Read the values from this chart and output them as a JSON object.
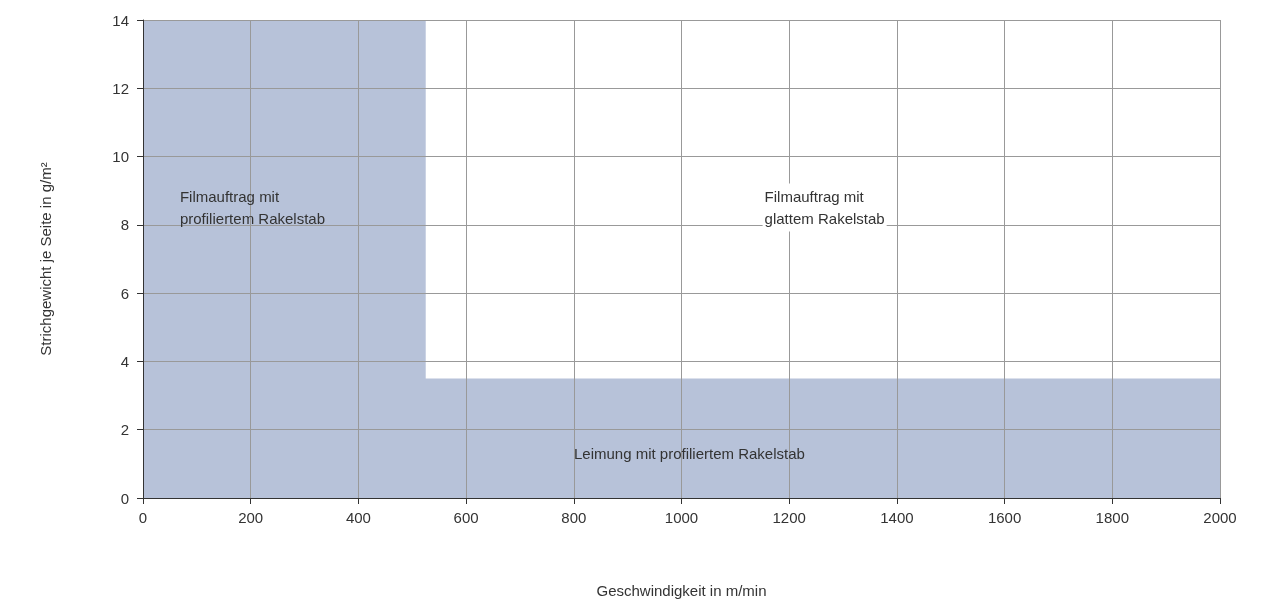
{
  "chart_data": {
    "type": "area",
    "xlabel": "Geschwindigkeit in m/min",
    "ylabel": "Strichgewicht je Seite in g/m²",
    "series": [
      {
        "color": "#b7c2d9",
        "x": [
          0,
          525,
          525,
          2000
        ],
        "values": [
          14,
          14,
          3.5,
          3.5
        ]
      }
    ],
    "xlim": [
      0,
      2000
    ],
    "xticks": [
      0,
      200,
      400,
      600,
      800,
      1000,
      1200,
      1400,
      1600,
      1800,
      2000
    ],
    "ylim": [
      0,
      14
    ],
    "yticks": [
      0,
      2,
      4,
      6,
      8,
      10,
      12,
      14
    ],
    "grid": true,
    "marker": "none",
    "annotations": [
      "Filmauftrag mit\nprofiliertem Rakelstab",
      "Filmauftrag mit\nglattem Rakelstab",
      "Leimung mit profiliertem Rakelstab"
    ]
  }
}
